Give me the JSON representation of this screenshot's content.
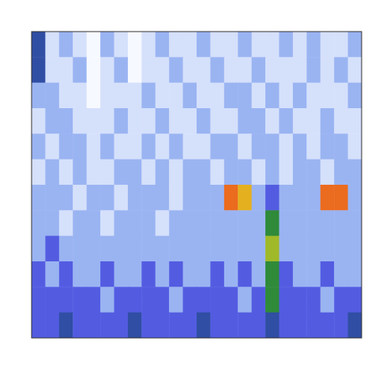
{
  "chart_data": {
    "type": "heatmap",
    "tick_labels": false,
    "xlim": [
      0,
      24
    ],
    "ylim": [
      0,
      12
    ],
    "zlim": [
      0,
      10
    ],
    "cells": [
      [
        5,
        2,
        3,
        2,
        1,
        3,
        2,
        1,
        2,
        3,
        2,
        2,
        3,
        2,
        2,
        3,
        2,
        2,
        3,
        2,
        3,
        2,
        2,
        3
      ],
      [
        5,
        2,
        2,
        3,
        1,
        2,
        3,
        1,
        2,
        2,
        3,
        2,
        2,
        3,
        2,
        2,
        3,
        2,
        2,
        2,
        3,
        2,
        3,
        2
      ],
      [
        3,
        3,
        2,
        2,
        1,
        2,
        2,
        2,
        3,
        2,
        2,
        3,
        2,
        2,
        3,
        3,
        2,
        3,
        2,
        3,
        2,
        2,
        2,
        3
      ],
      [
        2,
        3,
        3,
        2,
        2,
        2,
        3,
        2,
        2,
        3,
        2,
        2,
        3,
        2,
        2,
        3,
        3,
        2,
        3,
        2,
        2,
        3,
        2,
        2
      ],
      [
        3,
        2,
        3,
        3,
        2,
        3,
        2,
        2,
        3,
        2,
        3,
        2,
        2,
        3,
        3,
        2,
        3,
        3,
        2,
        3,
        2,
        3,
        3,
        2
      ],
      [
        2,
        3,
        2,
        3,
        2,
        2,
        3,
        3,
        2,
        3,
        2,
        3,
        3,
        2,
        3,
        3,
        2,
        3,
        2,
        3,
        3,
        2,
        3,
        3
      ],
      [
        3,
        3,
        3,
        2,
        3,
        3,
        2,
        3,
        3,
        3,
        2,
        3,
        3,
        3,
        9,
        8,
        3,
        4,
        3,
        3,
        3,
        9,
        9,
        3
      ],
      [
        3,
        3,
        2,
        3,
        3,
        2,
        3,
        3,
        3,
        2,
        3,
        3,
        3,
        3,
        3,
        3,
        3,
        6,
        3,
        3,
        3,
        3,
        3,
        3
      ],
      [
        3,
        4,
        3,
        3,
        3,
        3,
        3,
        3,
        3,
        3,
        3,
        3,
        3,
        3,
        3,
        3,
        3,
        7,
        3,
        3,
        3,
        3,
        3,
        3
      ],
      [
        4,
        3,
        4,
        3,
        3,
        4,
        3,
        3,
        4,
        3,
        4,
        3,
        3,
        4,
        3,
        4,
        3,
        6,
        4,
        3,
        3,
        4,
        3,
        3
      ],
      [
        4,
        4,
        4,
        4,
        4,
        3,
        4,
        4,
        4,
        4,
        3,
        4,
        4,
        4,
        4,
        3,
        4,
        6,
        4,
        4,
        4,
        3,
        4,
        4
      ],
      [
        4,
        4,
        5,
        4,
        4,
        4,
        4,
        5,
        4,
        4,
        4,
        4,
        5,
        4,
        4,
        4,
        4,
        5,
        4,
        4,
        4,
        4,
        4,
        5
      ]
    ]
  }
}
